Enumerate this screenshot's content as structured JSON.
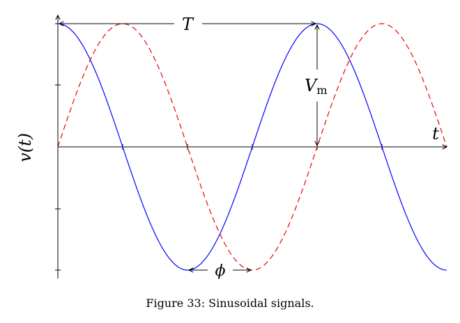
{
  "chart_data": {
    "type": "line",
    "ylabel": "v(t)",
    "xlabel": "t",
    "xlim": [
      0,
      6.0
    ],
    "ylim": [
      -1,
      1
    ],
    "grid": false,
    "legend": "none",
    "series": [
      {
        "function": "cos",
        "amplitude": 1,
        "period": 4,
        "phase": 0,
        "color": "#0000ff",
        "style": "solid"
      },
      {
        "function": "sin",
        "amplitude": 1,
        "period": 4,
        "phase": 0,
        "color": "#ee0000",
        "style": "dashed"
      }
    ],
    "annotations": {
      "period": "T",
      "amplitude_main": "V",
      "amplitude_sub": "m",
      "phase": "ϕ"
    }
  },
  "caption": "Figure 33: Sinusoidal signals."
}
